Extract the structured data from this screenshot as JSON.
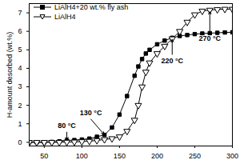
{
  "chart_data": {
    "type": "line",
    "y_label": "H-amount desorbed (wt.%)",
    "xlim": [
      30,
      300
    ],
    "xticks": [
      50,
      100,
      150,
      200,
      250,
      300
    ],
    "ylim": [
      -0.2,
      7.5
    ],
    "yticks": [
      0,
      1,
      2,
      3,
      4,
      5,
      6,
      7
    ],
    "legend": "top-left",
    "x": [
      30,
      40,
      50,
      60,
      70,
      80,
      90,
      100,
      110,
      120,
      130,
      140,
      150,
      160,
      170,
      175,
      180,
      185,
      190,
      200,
      210,
      220,
      230,
      240,
      250,
      260,
      270,
      280,
      290,
      300
    ],
    "series": [
      {
        "name": "LiAlH4+20 wt.% fly ash",
        "color": "#000000",
        "marker": "square",
        "values": [
          0,
          0,
          0,
          0.02,
          0.05,
          0.1,
          0.12,
          0.15,
          0.2,
          0.3,
          0.4,
          0.8,
          1.5,
          2.5,
          3.6,
          4.1,
          4.5,
          4.8,
          5.0,
          5.3,
          5.5,
          5.65,
          5.75,
          5.8,
          5.85,
          5.88,
          5.9,
          5.92,
          5.94,
          5.95
        ]
      },
      {
        "name": "LiAlH4",
        "color": "#000000",
        "marker": "triangle-down",
        "values": [
          0,
          0,
          0,
          0,
          0,
          0.01,
          0.02,
          0.04,
          0.06,
          0.1,
          0.15,
          0.2,
          0.3,
          0.6,
          1.2,
          2.0,
          3.0,
          3.8,
          4.3,
          4.8,
          5.2,
          5.6,
          6.0,
          6.5,
          6.9,
          7.1,
          7.15,
          7.18,
          7.2,
          7.2
        ]
      }
    ],
    "annotations": [
      {
        "text": "80 °C",
        "x": 80,
        "y": 0.1,
        "text_x": 80,
        "text_y": 0.9
      },
      {
        "text": "130 °C",
        "x": 130,
        "y": 0.4,
        "text_x": 112,
        "text_y": 1.6
      },
      {
        "text": "220 °C",
        "x": 220,
        "y": 5.6,
        "text_x": 220,
        "text_y": 4.4
      },
      {
        "text": "270 °C",
        "x": 270,
        "y": 7.1,
        "text_x": 270,
        "text_y": 5.6
      }
    ]
  }
}
